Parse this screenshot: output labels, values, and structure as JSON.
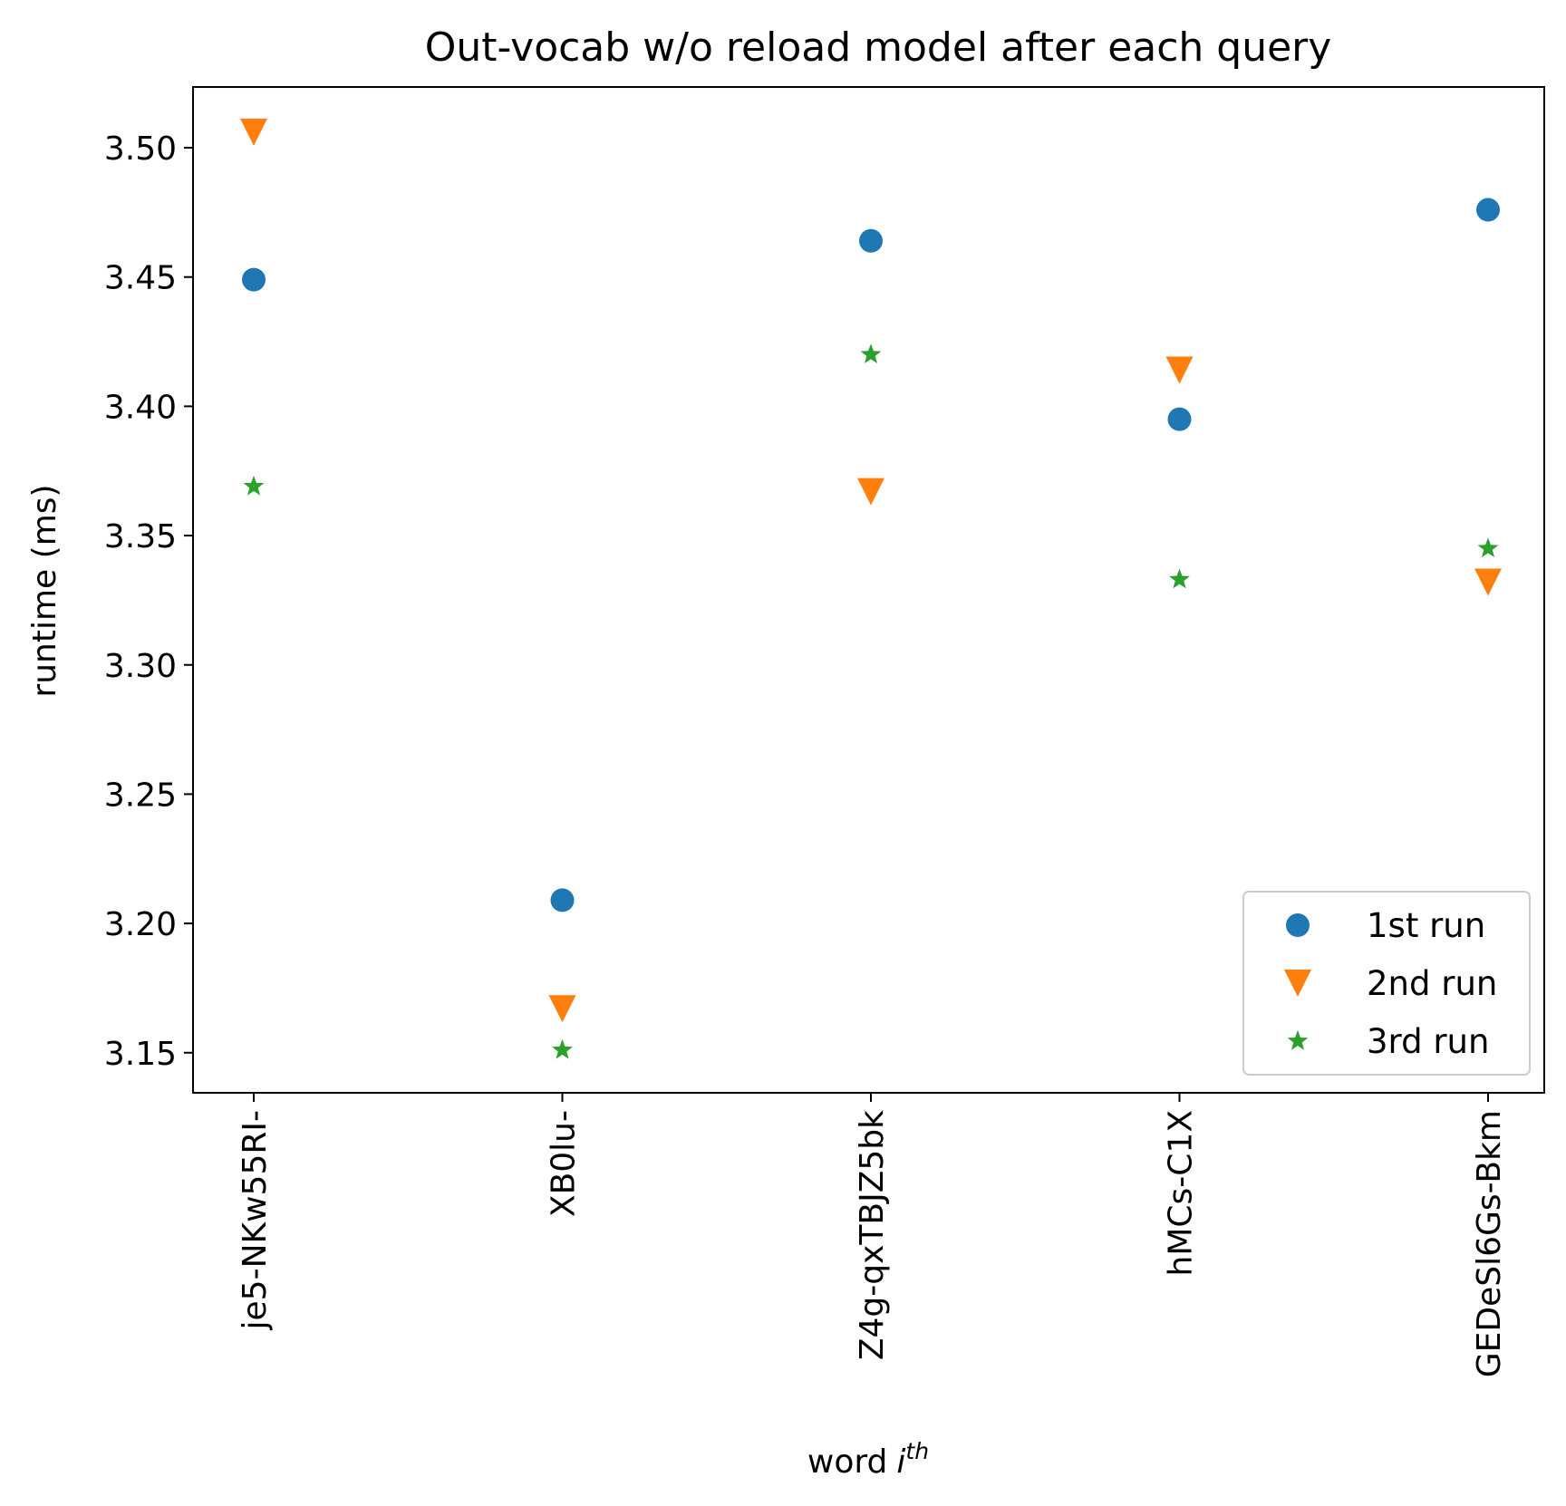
{
  "chart_data": {
    "type": "scatter",
    "title": "Out-vocab w/o reload model after each query",
    "xlabel": "word",
    "xlabel_italic": "i",
    "xlabel_sup": "th",
    "ylabel": "runtime (ms)",
    "categories": [
      "je5-NKw55RI-",
      "XB0lu-",
      "Z4g-qxTBJZ5bk",
      "hMCs-C1X",
      "GEDeSl6Gs-Bkm"
    ],
    "yticks": [
      3.15,
      3.2,
      3.25,
      3.3,
      3.35,
      3.4,
      3.45,
      3.5
    ],
    "ytick_labels": [
      "3.15",
      "3.20",
      "3.25",
      "3.30",
      "3.35",
      "3.40",
      "3.45",
      "3.50"
    ],
    "ylim": [
      3.1345,
      3.5235
    ],
    "grid": false,
    "legend_position": "lower right",
    "series": [
      {
        "name": "1st run",
        "marker": "circle",
        "color": "#1f77b4",
        "values": [
          3.449,
          3.209,
          3.464,
          3.395,
          3.476
        ]
      },
      {
        "name": "2nd run",
        "marker": "triangle-down",
        "color": "#ff7f0e",
        "values": [
          3.506,
          3.167,
          3.367,
          3.414,
          3.332
        ]
      },
      {
        "name": "3rd run",
        "marker": "star",
        "color": "#2ca02c",
        "values": [
          3.369,
          3.151,
          3.42,
          3.333,
          3.345
        ]
      }
    ]
  }
}
